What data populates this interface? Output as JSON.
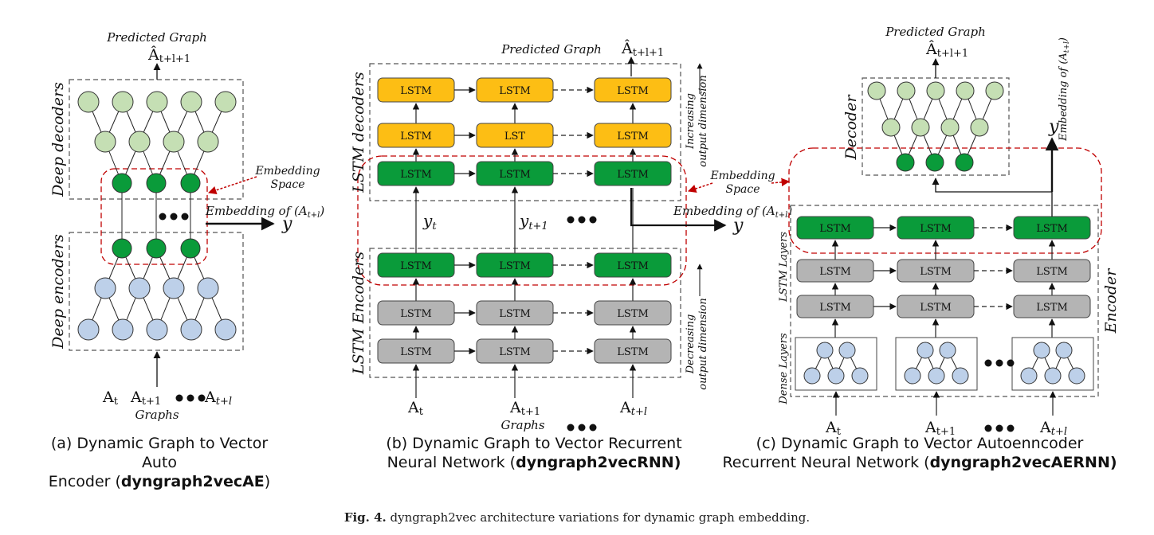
{
  "panel_a": {
    "predicted_graph": "Predicted Graph",
    "output_symbol": "Â",
    "output_sub": "t+l+1",
    "decoders_label": "Deep decoders",
    "encoders_label": "Deep encoders",
    "embedding_space": [
      "Embedding",
      "Space"
    ],
    "embedding_of": "Embedding of (A",
    "embedding_of_sub": "t+l",
    "embedding_of_close": ")",
    "y": "y",
    "input_A": "A",
    "inputs": [
      "t",
      "t+1",
      "t+l"
    ],
    "graphs": "Graphs",
    "caption_line1": "(a) Dynamic Graph to Vector Auto",
    "caption_line2_pre": "Encoder (",
    "caption_bold": "dyngraph2vecAE",
    "caption_line2_post": ")"
  },
  "panel_b": {
    "predicted_graph": "Predicted Graph",
    "output_symbol": "Â",
    "output_sub": "t+l+1",
    "decoders_label": "LSTM decoders",
    "encoders_label": "LSTM Encoders",
    "increasing": [
      "Increasing",
      "output dimension"
    ],
    "decreasing": [
      "Decreasing",
      "output dimension"
    ],
    "decoder_rows": [
      [
        "LSTM",
        "LSTM",
        "LSTM"
      ],
      [
        "LSTM",
        "LST",
        "LSTM"
      ],
      [
        "LSTM",
        "LSTM",
        "LSTM"
      ]
    ],
    "encoder_rows": [
      [
        "LSTM",
        "LSTM",
        "LSTM"
      ],
      [
        "LSTM",
        "LSTM",
        "LSTM"
      ],
      [
        "LSTM",
        "LSTM",
        "LSTM"
      ]
    ],
    "y_t": "y",
    "y_t_sub": "t",
    "y_t1_sub": "t+1",
    "embedding_space": [
      "Embedding",
      "Space"
    ],
    "embedding_of": "Embedding of (A",
    "embedding_of_sub": "t+l",
    "embedding_of_close": ")",
    "y": "y",
    "input_A": "A",
    "inputs": [
      "t",
      "t+1",
      "t+l"
    ],
    "graphs": "Graphs",
    "caption_line1": "(b) Dynamic Graph to Vector Recurrent",
    "caption_line2_pre": "Neural Network  (",
    "caption_bold": "dyngraph2vecRNN)",
    "caption_line2_post": ""
  },
  "panel_c": {
    "predicted_graph": "Predicted Graph",
    "output_symbol": "Â",
    "output_sub": "t+l+1",
    "decoder_label": "Decoder",
    "encoder_label": "Encoder",
    "lstm_layers": "LSTM Layers",
    "dense_layers": "Dense Layers",
    "embedding_of_vertical": "Embedding of (A",
    "embedding_of_vertical_sub": "t+l",
    "embedding_of_vertical_close": ")",
    "y": "y",
    "lstm_rows": [
      [
        "LSTM",
        "LSTM",
        "LSTM"
      ],
      [
        "LSTM",
        "LSTM",
        "LSTM"
      ],
      [
        "LSTM",
        "LSTM",
        "LSTM"
      ]
    ],
    "input_A": "A",
    "inputs": [
      "t",
      "t+1",
      "t+l"
    ],
    "caption_line1": "(c) Dynamic Graph to Vector Autoenncoder",
    "caption_line2_pre": "Recurrent Neural Network  (",
    "caption_bold": "dyngraph2vecAERNN)",
    "caption_line2_post": ""
  },
  "figure_caption": {
    "label": "Fig. 4.",
    "text": "dyngraph2vec architecture variations for dynamic graph embedding."
  },
  "colors": {
    "green": "#0a9b3a",
    "light_green": "#c5dfb4",
    "blue": "#bdd0e9",
    "orange": "#fdbe14",
    "gray": "#b4b4b4",
    "red_dashed": "#c00000"
  }
}
